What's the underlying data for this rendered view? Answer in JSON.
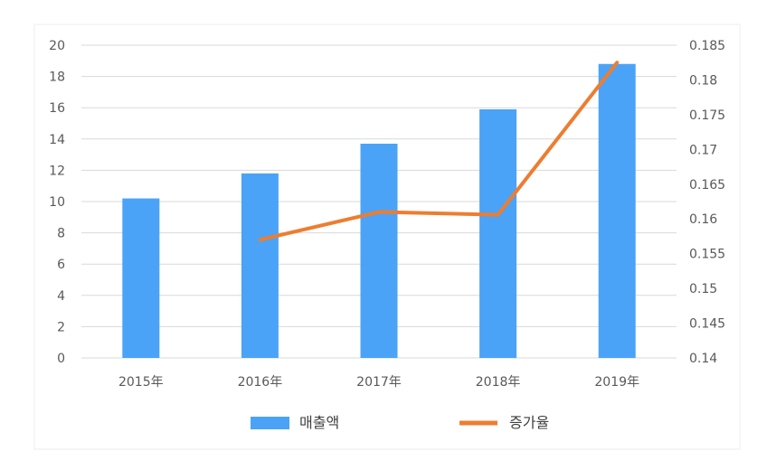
{
  "chart_data": {
    "type": "bar+line",
    "categories": [
      "2015年",
      "2016年",
      "2017年",
      "2018年",
      "2019年"
    ],
    "series": [
      {
        "name": "매출액",
        "type": "bar",
        "axis": "left",
        "color": "#4aa3f7",
        "values": [
          10.2,
          11.8,
          13.7,
          15.9,
          18.8
        ]
      },
      {
        "name": "증가율",
        "type": "line",
        "axis": "right",
        "color": "#ed7d31",
        "values": [
          null,
          0.157,
          0.161,
          0.1606,
          0.1825
        ]
      }
    ],
    "y_left": {
      "min": 0,
      "max": 20,
      "step": 2,
      "ticks": [
        "0",
        "2",
        "4",
        "6",
        "8",
        "10",
        "12",
        "14",
        "16",
        "18",
        "20"
      ]
    },
    "y_right": {
      "min": 0.14,
      "max": 0.185,
      "step": 0.005,
      "ticks": [
        "0.14",
        "0.145",
        "0.15",
        "0.155",
        "0.16",
        "0.165",
        "0.17",
        "0.175",
        "0.18",
        "0.185"
      ]
    },
    "grid": true,
    "legend": "bottom"
  }
}
